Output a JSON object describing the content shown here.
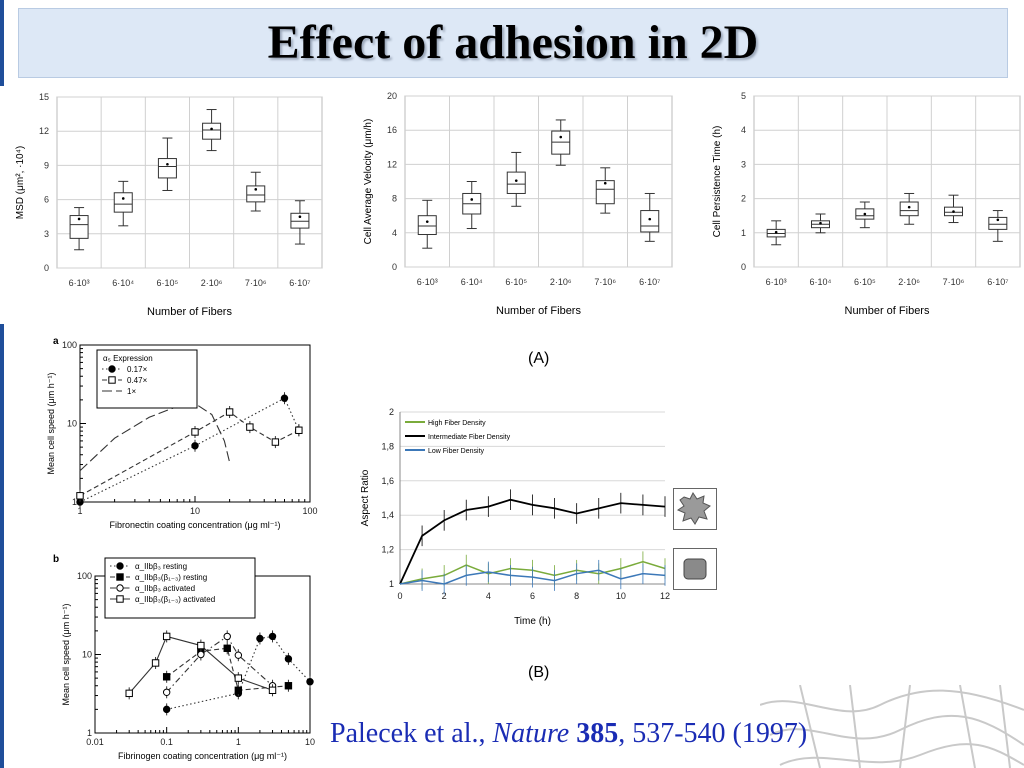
{
  "slide": {
    "title": "Effect of adhesion in 2D",
    "caption_a": "(A)",
    "caption_b": "(B)",
    "reference": {
      "authors": "Palecek et al., ",
      "journal": "Nature",
      "volume": "385",
      "pages": ", 537-540 (1997)"
    }
  },
  "colors": {
    "title_bg": "#dde8f6",
    "reference_text": "#1a2cb4",
    "high_density": "#7aab3b",
    "intermediate_density": "#000000",
    "low_density": "#3c78b8"
  },
  "chart_data": [
    {
      "id": "msd",
      "type": "box",
      "categories": [
        "6·10³",
        "6·10⁴",
        "6·10⁵",
        "2·10⁶",
        "7·10⁶",
        "6·10⁷"
      ],
      "xlabel": "Number of Fibers",
      "ylabel": "MSD (μm², ·10⁴)",
      "ylim": [
        0,
        15
      ],
      "yticks": [
        0,
        3,
        6,
        9,
        12,
        15
      ],
      "grid": true,
      "boxes": [
        {
          "min": 1.6,
          "q1": 2.6,
          "median": 3.8,
          "q3": 4.6,
          "max": 5.3,
          "mean": 4.3
        },
        {
          "min": 3.7,
          "q1": 4.9,
          "median": 5.6,
          "q3": 6.6,
          "max": 7.6,
          "mean": 6.1
        },
        {
          "min": 6.8,
          "q1": 7.9,
          "median": 8.9,
          "q3": 9.6,
          "max": 11.4,
          "mean": 9.1
        },
        {
          "min": 10.3,
          "q1": 11.3,
          "median": 12.1,
          "q3": 12.7,
          "max": 13.9,
          "mean": 12.2
        },
        {
          "min": 5.0,
          "q1": 5.8,
          "median": 6.4,
          "q3": 7.2,
          "max": 8.4,
          "mean": 6.9
        },
        {
          "min": 2.1,
          "q1": 3.5,
          "median": 4.1,
          "q3": 4.8,
          "max": 5.9,
          "mean": 4.5
        }
      ]
    },
    {
      "id": "velocity",
      "type": "box",
      "categories": [
        "6·10³",
        "6·10⁴",
        "6·10⁵",
        "2·10⁶",
        "7·10⁶",
        "6·10⁷"
      ],
      "xlabel": "Number of Fibers",
      "ylabel": "Cell Average Velocity (μm/h)",
      "ylim": [
        0,
        20
      ],
      "yticks": [
        0,
        4,
        8,
        12,
        16,
        20
      ],
      "grid": true,
      "boxes": [
        {
          "min": 2.2,
          "q1": 3.8,
          "median": 4.8,
          "q3": 6.0,
          "max": 7.8,
          "mean": 5.3
        },
        {
          "min": 4.5,
          "q1": 6.2,
          "median": 7.4,
          "q3": 8.6,
          "max": 10.0,
          "mean": 7.9
        },
        {
          "min": 7.1,
          "q1": 8.6,
          "median": 9.7,
          "q3": 11.1,
          "max": 13.4,
          "mean": 10.1
        },
        {
          "min": 11.9,
          "q1": 13.2,
          "median": 14.6,
          "q3": 15.9,
          "max": 17.2,
          "mean": 15.2
        },
        {
          "min": 6.3,
          "q1": 7.4,
          "median": 9.1,
          "q3": 10.1,
          "max": 11.6,
          "mean": 9.8
        },
        {
          "min": 3.0,
          "q1": 4.1,
          "median": 4.8,
          "q3": 6.6,
          "max": 8.6,
          "mean": 5.6
        }
      ]
    },
    {
      "id": "persistence",
      "type": "box",
      "categories": [
        "6·10³",
        "6·10⁴",
        "6·10⁵",
        "2·10⁶",
        "7·10⁶",
        "6·10⁷"
      ],
      "xlabel": "Number of Fibers",
      "ylabel": "Cell Persistence Time (h)",
      "ylim": [
        0,
        5
      ],
      "yticks": [
        0,
        1,
        2,
        3,
        4,
        5
      ],
      "grid": true,
      "boxes": [
        {
          "min": 0.65,
          "q1": 0.88,
          "median": 0.98,
          "q3": 1.1,
          "max": 1.35,
          "mean": 1.02
        },
        {
          "min": 1.0,
          "q1": 1.15,
          "median": 1.25,
          "q3": 1.35,
          "max": 1.55,
          "mean": 1.28
        },
        {
          "min": 1.15,
          "q1": 1.4,
          "median": 1.5,
          "q3": 1.7,
          "max": 1.9,
          "mean": 1.55
        },
        {
          "min": 1.25,
          "q1": 1.5,
          "median": 1.65,
          "q3": 1.9,
          "max": 2.15,
          "mean": 1.75
        },
        {
          "min": 1.3,
          "q1": 1.5,
          "median": 1.6,
          "q3": 1.75,
          "max": 2.1,
          "mean": 1.62
        },
        {
          "min": 0.75,
          "q1": 1.1,
          "median": 1.25,
          "q3": 1.45,
          "max": 1.65,
          "mean": 1.38
        }
      ]
    },
    {
      "id": "palecek-a",
      "type": "line",
      "panel_label": "a",
      "xscale": "log",
      "yscale": "log",
      "xlim": [
        1,
        100
      ],
      "ylim": [
        1,
        100
      ],
      "xticks": [
        1,
        10,
        100
      ],
      "yticks": [
        1,
        10,
        100
      ],
      "xlabel": "Fibronectin  coating  concentration  (μg  ml⁻¹)",
      "ylabel": "Mean cell speed (μm h⁻¹)",
      "legend_title": "α₅ Expression",
      "series": [
        {
          "name": "0.17×",
          "marker": "filled-circle",
          "dash": "dotted",
          "x": [
            1,
            10,
            60,
            80
          ],
          "y": [
            1.0,
            5.2,
            21,
            8.2
          ]
        },
        {
          "name": "0.47×",
          "marker": "open-square",
          "dash": "dashed",
          "x": [
            1,
            10,
            20,
            30,
            50,
            80
          ],
          "y": [
            1.2,
            7.8,
            14,
            9.0,
            5.8,
            8.2
          ]
        },
        {
          "name": "1×",
          "marker": "none",
          "dash": "long-dash",
          "x": [
            1,
            2,
            4,
            7,
            10,
            14,
            18,
            20
          ],
          "y": [
            2.5,
            6.5,
            12,
            16.5,
            18,
            13,
            6,
            3.2
          ]
        }
      ]
    },
    {
      "id": "palecek-b",
      "type": "line",
      "panel_label": "b",
      "xscale": "log",
      "yscale": "log",
      "xlim": [
        0.01,
        10
      ],
      "ylim": [
        1,
        100
      ],
      "xticks": [
        0.01,
        0.1,
        1,
        10
      ],
      "yticks": [
        1,
        10,
        100
      ],
      "xlabel": "Fibrinogen  coating  concentration  (μg  ml⁻¹)",
      "ylabel": "Mean cell speed (μm h⁻¹)",
      "series": [
        {
          "name": "α_IIbβ₃ resting",
          "marker": "filled-circle",
          "dash": "dotted",
          "x": [
            0.1,
            1,
            2,
            3,
            5,
            10
          ],
          "y": [
            2.0,
            3.2,
            16,
            17,
            8.8,
            4.5
          ]
        },
        {
          "name": "α_IIbβ₃(β₁₋₃) resting",
          "marker": "filled-square",
          "dash": "dashed",
          "x": [
            0.1,
            0.3,
            0.7,
            1,
            5
          ],
          "y": [
            5.2,
            11,
            12,
            3.5,
            4.0
          ]
        },
        {
          "name": "α_IIbβ₃ activated",
          "marker": "open-circle",
          "dash": "dash-dot",
          "x": [
            0.1,
            0.3,
            0.7,
            1,
            3
          ],
          "y": [
            3.3,
            10,
            17,
            9.8,
            4.0
          ]
        },
        {
          "name": "α_IIbβ₃(β₁₋₃) activated",
          "marker": "open-square",
          "dash": "solid",
          "x": [
            0.03,
            0.07,
            0.1,
            0.3,
            1,
            3
          ],
          "y": [
            3.2,
            7.8,
            17,
            13,
            5.0,
            3.5
          ]
        }
      ]
    },
    {
      "id": "aspect-ratio",
      "type": "line",
      "x": [
        0,
        1,
        2,
        3,
        4,
        5,
        6,
        7,
        8,
        9,
        10,
        11,
        12
      ],
      "xlim": [
        0,
        12
      ],
      "ylim": [
        1,
        2
      ],
      "xticks": [
        0,
        2,
        4,
        6,
        8,
        10,
        12
      ],
      "yticks": [
        "1",
        "1,2",
        "1,4",
        "1,6",
        "1,8",
        "2"
      ],
      "ytick_values": [
        1,
        1.2,
        1.4,
        1.6,
        1.8,
        2
      ],
      "xlabel": "Time  (h)",
      "ylabel": "Aspect Ratio",
      "grid": true,
      "series": [
        {
          "name": "High Fiber Density",
          "color": "#7aab3b",
          "y": [
            1.0,
            1.03,
            1.05,
            1.11,
            1.06,
            1.09,
            1.08,
            1.05,
            1.08,
            1.06,
            1.09,
            1.13,
            1.09
          ]
        },
        {
          "name": "Intermediate Fiber Density",
          "color": "#000000",
          "y": [
            1.0,
            1.28,
            1.37,
            1.43,
            1.45,
            1.49,
            1.46,
            1.44,
            1.41,
            1.44,
            1.47,
            1.46,
            1.45
          ]
        },
        {
          "name": "Low Fiber Density",
          "color": "#3c78b8",
          "y": [
            1.0,
            1.02,
            1.0,
            1.05,
            1.07,
            1.05,
            1.04,
            1.02,
            1.06,
            1.08,
            1.03,
            1.06,
            1.05
          ]
        }
      ],
      "error": 0.06
    }
  ]
}
